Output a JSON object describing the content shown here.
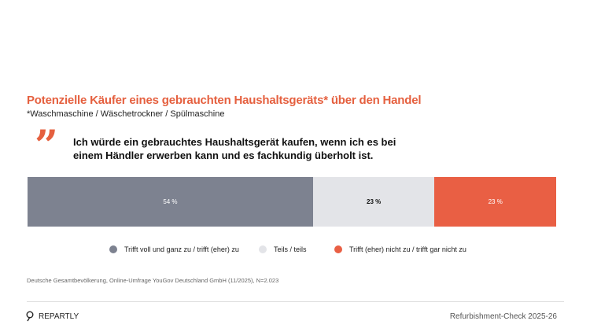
{
  "title": "Potenzielle Käufer eines gebrauchten Haushaltsgeräts* über den Handel",
  "subtitle": "*Waschmaschine / Wäschetrockner / Spülmaschine",
  "statement": "Ich würde ein gebrauchtes Haushaltsgerät kaufen, wenn ich es bei einem Händler erwerben kann und es fachkundig überholt ist.",
  "chart_data": {
    "type": "bar",
    "orientation": "horizontal-stacked",
    "categories": [
      "Ich würde ein gebrauchtes Haushaltsgerät kaufen, wenn ich es bei einem Händler erwerben kann und es fachkundig überholt ist."
    ],
    "series": [
      {
        "name": "Trifft voll und ganz zu / trifft (eher) zu",
        "values": [
          54
        ],
        "label": "54 %",
        "color": "#7d8290",
        "label_color": "#ffffff"
      },
      {
        "name": "Teils / teils",
        "values": [
          23
        ],
        "label": "23 %",
        "color": "#e3e4e8",
        "label_color": "#111111"
      },
      {
        "name": "Trifft (eher) nicht zu / trifft gar nicht zu",
        "values": [
          23
        ],
        "label": "23 %",
        "color": "#e95f44",
        "label_color": "#ffffff"
      }
    ],
    "xlim": [
      0,
      100
    ],
    "legend": "bottom"
  },
  "source": "Deutsche Gesamtbevölkerung, Online-Umfrage YouGov Deutschland GmbH (11/2025), N=2.023",
  "footer": {
    "logo": "REPARTLY",
    "right": "Refurbishment-Check 2025-26"
  }
}
